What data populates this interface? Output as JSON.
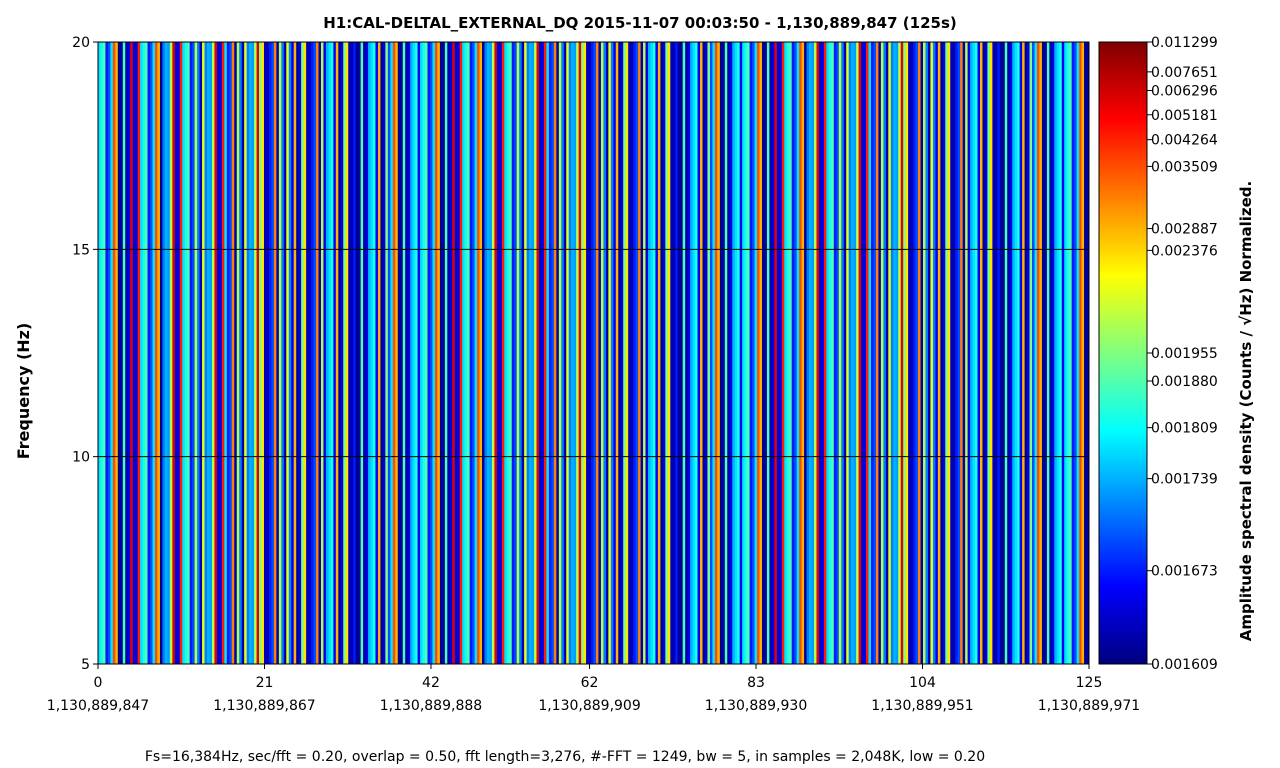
{
  "chart_data": {
    "type": "heatmap",
    "title": "H1:CAL-DELTAL_EXTERNAL_DQ 2015-11-07 00:03:50 - 1,130,889,847 (125s)",
    "xlabel": "",
    "ylabel": "Frequency (Hz)",
    "footer": "Fs=16,384Hz, sec/fft = 0.20, overlap = 0.50, fft length=3,276, #-FFT = 1249, bw = 5, in samples = 2,048K, low = 0.20",
    "colorbar_label": "Amplitude spectral density (Counts / √Hz) Normalized.",
    "x_range": [
      0,
      125
    ],
    "y_range": [
      5,
      20
    ],
    "x_ticks": [
      {
        "value": 0,
        "label": "0",
        "gps": "1,130,889,847"
      },
      {
        "value": 21,
        "label": "21",
        "gps": "1,130,889,867"
      },
      {
        "value": 42,
        "label": "42",
        "gps": "1,130,889,888"
      },
      {
        "value": 62,
        "label": "62",
        "gps": "1,130,889,909"
      },
      {
        "value": 83,
        "label": "83",
        "gps": "1,130,889,930"
      },
      {
        "value": 104,
        "label": "104",
        "gps": "1,130,889,951"
      },
      {
        "value": 125,
        "label": "125",
        "gps": "1,130,889,971"
      }
    ],
    "y_ticks": [
      {
        "value": 5,
        "label": "5"
      },
      {
        "value": 10,
        "label": "10"
      },
      {
        "value": 15,
        "label": "15"
      },
      {
        "value": 20,
        "label": "20"
      }
    ],
    "y_gridlines": [
      10,
      15
    ],
    "colormap": "jet",
    "colorbar_ticks": [
      {
        "value": 0.011299,
        "label": "0.011299"
      },
      {
        "value": 0.007651,
        "label": "0.007651"
      },
      {
        "value": 0.006296,
        "label": "0.006296"
      },
      {
        "value": 0.005181,
        "label": "0.005181"
      },
      {
        "value": 0.004264,
        "label": "0.004264"
      },
      {
        "value": 0.003509,
        "label": "0.003509"
      },
      {
        "value": 0.002887,
        "label": "0.002887"
      },
      {
        "value": 0.002376,
        "label": "0.002376"
      },
      {
        "value": 0.001955,
        "label": "0.001955"
      },
      {
        "value": 0.00188,
        "label": "0.001880"
      },
      {
        "value": 0.001809,
        "label": "0.001809"
      },
      {
        "value": 0.001739,
        "label": "0.001739"
      },
      {
        "value": 0.001673,
        "label": "0.001673"
      },
      {
        "value": 0.001609,
        "label": "0.001609"
      }
    ],
    "colorbar_positions": [
      1.0,
      0.952,
      0.922,
      0.883,
      0.843,
      0.8,
      0.7,
      0.665,
      0.5,
      0.455,
      0.38,
      0.298,
      0.15,
      0.0
    ],
    "column_levels_pattern": [
      0.35,
      0.05,
      0.8,
      0.25,
      0.1,
      0.55,
      0.02,
      0.4,
      0.15,
      0.7,
      0.05,
      0.3,
      0.9,
      0.1,
      0.45,
      0.2,
      0.02,
      0.6,
      0.35,
      0.08,
      0.5,
      0.15,
      0.75,
      0.03,
      0.25,
      0.4,
      0.1,
      0.65,
      0.2,
      0.05,
      0.45,
      0.3,
      0.12,
      0.85,
      0.06,
      0.35,
      0.55,
      0.04,
      0.28,
      0.7
    ],
    "column_count": 400
  }
}
